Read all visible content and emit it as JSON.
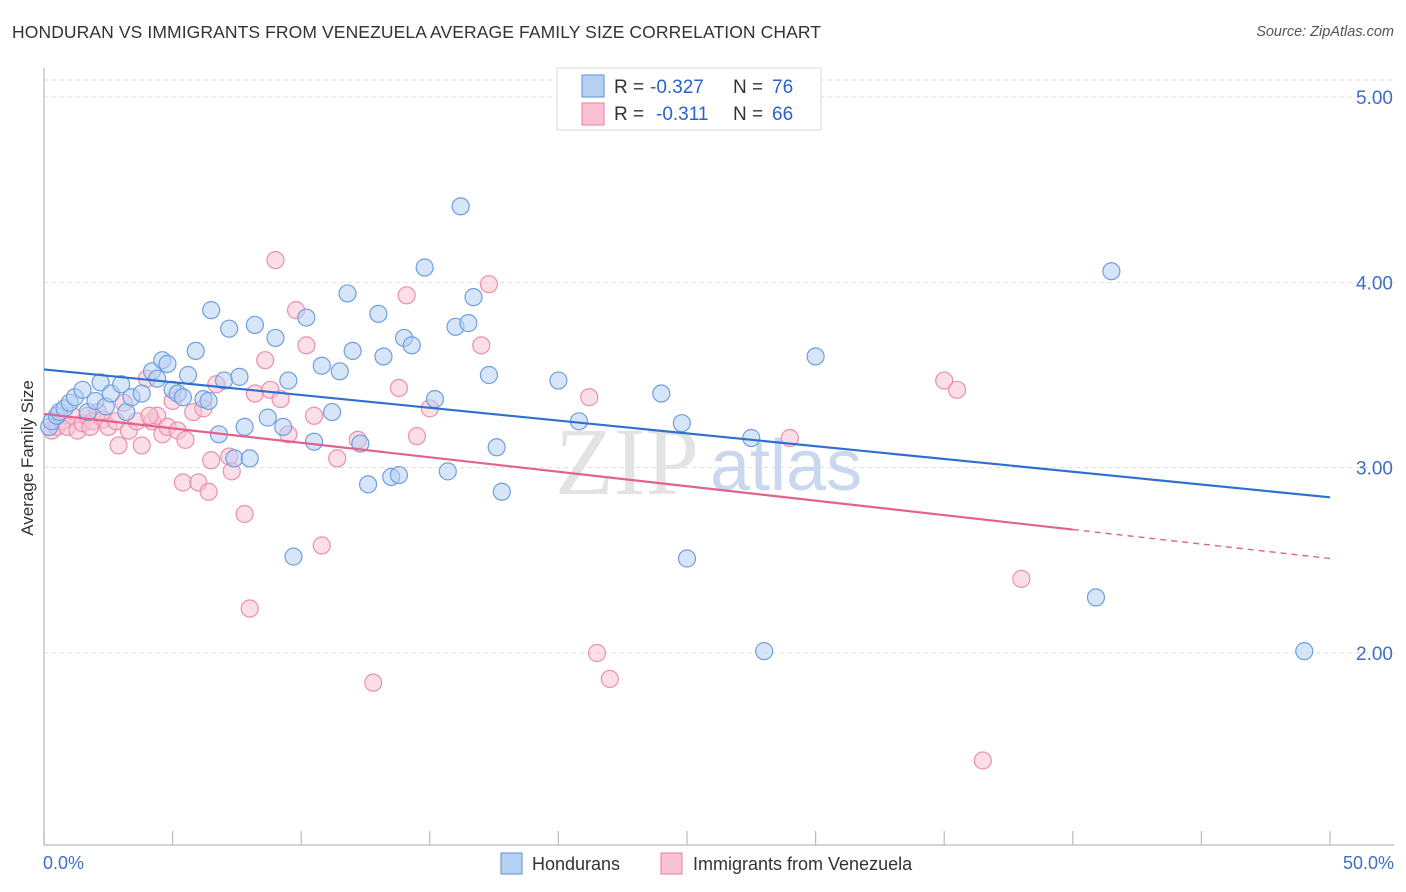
{
  "header": {
    "title": "HONDURAN VS IMMIGRANTS FROM VENEZUELA AVERAGE FAMILY SIZE CORRELATION CHART",
    "source": "Source: ZipAtlas.com"
  },
  "legend_top": {
    "rows": [
      {
        "r_label": "R =",
        "r_value": "-0.327",
        "n_label": "N =",
        "n_value": "76"
      },
      {
        "r_label": "R =",
        "r_value": "-0.311",
        "n_label": "N =",
        "n_value": "66"
      }
    ]
  },
  "legend_bottom": {
    "items": [
      {
        "label": "Hondurans"
      },
      {
        "label": "Immigrants from Venezuela"
      }
    ]
  },
  "watermark": {
    "part1": "ZIP",
    "part2": "atlas"
  },
  "colors": {
    "blue_fill": "#b7d0f2",
    "blue_stroke": "#6f9fe0",
    "blue_line": "#2f6fd0",
    "pink_fill": "#f8c2d2",
    "pink_stroke": "#ec8fae",
    "pink_line": "#e2618f",
    "tick_text": "#3f6fc4",
    "grid": "#dddddd"
  },
  "chart_data": {
    "type": "scatter",
    "title": "HONDURAN VS IMMIGRANTS FROM VENEZUELA AVERAGE FAMILY SIZE CORRELATION CHART",
    "xlabel": "",
    "ylabel": "Average Family Size",
    "xlim": [
      0,
      50
    ],
    "ylim": [
      1.0,
      5.15
    ],
    "x_tick_labels": [
      "0.0%",
      "50.0%"
    ],
    "y_ticks": [
      2.0,
      3.0,
      4.0,
      5.0
    ],
    "y_tick_labels": [
      "2.00",
      "3.00",
      "4.00",
      "5.00"
    ],
    "grid": true,
    "legend_position": "top-center",
    "series": [
      {
        "name": "Hondurans",
        "color": "#6f9fe0",
        "trend": {
          "x0": 0,
          "y0": 3.53,
          "x1": 50,
          "y1": 2.84,
          "solid_to": 50
        },
        "points": [
          [
            0.2,
            3.22
          ],
          [
            0.3,
            3.25
          ],
          [
            0.5,
            3.28
          ],
          [
            0.6,
            3.3
          ],
          [
            0.8,
            3.32
          ],
          [
            1.0,
            3.35
          ],
          [
            1.2,
            3.38
          ],
          [
            1.5,
            3.42
          ],
          [
            1.7,
            3.3
          ],
          [
            2.0,
            3.36
          ],
          [
            2.2,
            3.46
          ],
          [
            2.4,
            3.33
          ],
          [
            2.6,
            3.4
          ],
          [
            3.0,
            3.45
          ],
          [
            3.2,
            3.3
          ],
          [
            3.4,
            3.38
          ],
          [
            3.8,
            3.4
          ],
          [
            4.2,
            3.52
          ],
          [
            4.4,
            3.48
          ],
          [
            4.6,
            3.58
          ],
          [
            4.8,
            3.56
          ],
          [
            5.0,
            3.42
          ],
          [
            5.2,
            3.4
          ],
          [
            5.4,
            3.38
          ],
          [
            5.6,
            3.5
          ],
          [
            5.9,
            3.63
          ],
          [
            6.2,
            3.37
          ],
          [
            6.4,
            3.36
          ],
          [
            6.5,
            3.85
          ],
          [
            6.8,
            3.18
          ],
          [
            7.0,
            3.47
          ],
          [
            7.2,
            3.75
          ],
          [
            7.4,
            3.05
          ],
          [
            7.6,
            3.49
          ],
          [
            7.8,
            3.22
          ],
          [
            8.0,
            3.05
          ],
          [
            8.2,
            3.77
          ],
          [
            8.7,
            3.27
          ],
          [
            9.0,
            3.7
          ],
          [
            9.3,
            3.22
          ],
          [
            9.5,
            3.47
          ],
          [
            9.7,
            2.52
          ],
          [
            10.2,
            3.81
          ],
          [
            10.5,
            3.14
          ],
          [
            10.8,
            3.55
          ],
          [
            11.2,
            3.3
          ],
          [
            11.5,
            3.52
          ],
          [
            11.8,
            3.94
          ],
          [
            12.0,
            3.63
          ],
          [
            12.3,
            3.13
          ],
          [
            12.6,
            2.91
          ],
          [
            13.0,
            3.83
          ],
          [
            13.2,
            3.6
          ],
          [
            13.5,
            2.95
          ],
          [
            13.8,
            2.96
          ],
          [
            14.0,
            3.7
          ],
          [
            14.3,
            3.66
          ],
          [
            14.8,
            4.08
          ],
          [
            15.2,
            3.37
          ],
          [
            15.7,
            2.98
          ],
          [
            16.0,
            3.76
          ],
          [
            16.2,
            4.41
          ],
          [
            16.5,
            3.78
          ],
          [
            16.7,
            3.92
          ],
          [
            17.3,
            3.5
          ],
          [
            17.6,
            3.11
          ],
          [
            17.8,
            2.87
          ],
          [
            20.0,
            3.47
          ],
          [
            20.8,
            3.25
          ],
          [
            24.0,
            3.4
          ],
          [
            24.8,
            3.24
          ],
          [
            25.0,
            2.51
          ],
          [
            27.5,
            3.16
          ],
          [
            28.0,
            2.01
          ],
          [
            30.0,
            3.6
          ],
          [
            41.5,
            4.06
          ],
          [
            40.9,
            2.3
          ],
          [
            49.0,
            2.01
          ]
        ]
      },
      {
        "name": "Immigrants from Venezuela",
        "color": "#ec8fae",
        "trend": {
          "x0": 0,
          "y0": 3.29,
          "x1": 50,
          "y1": 2.51,
          "solid_to": 40
        },
        "points": [
          [
            0.3,
            3.2
          ],
          [
            0.5,
            3.22
          ],
          [
            0.7,
            3.25
          ],
          [
            0.9,
            3.22
          ],
          [
            1.1,
            3.28
          ],
          [
            1.3,
            3.2
          ],
          [
            1.5,
            3.24
          ],
          [
            1.7,
            3.28
          ],
          [
            1.9,
            3.25
          ],
          [
            2.1,
            3.3
          ],
          [
            2.3,
            3.26
          ],
          [
            2.5,
            3.22
          ],
          [
            2.8,
            3.25
          ],
          [
            2.9,
            3.12
          ],
          [
            3.1,
            3.35
          ],
          [
            3.3,
            3.2
          ],
          [
            3.6,
            3.25
          ],
          [
            3.8,
            3.12
          ],
          [
            4.0,
            3.48
          ],
          [
            4.2,
            3.25
          ],
          [
            4.4,
            3.28
          ],
          [
            4.6,
            3.18
          ],
          [
            4.8,
            3.22
          ],
          [
            5.0,
            3.36
          ],
          [
            5.2,
            3.2
          ],
          [
            5.4,
            2.92
          ],
          [
            5.5,
            3.15
          ],
          [
            5.8,
            3.3
          ],
          [
            6.0,
            2.92
          ],
          [
            6.2,
            3.32
          ],
          [
            6.4,
            2.87
          ],
          [
            6.5,
            3.04
          ],
          [
            6.7,
            3.45
          ],
          [
            7.2,
            3.06
          ],
          [
            7.3,
            2.98
          ],
          [
            7.8,
            2.75
          ],
          [
            8.0,
            2.24
          ],
          [
            8.2,
            3.4
          ],
          [
            8.6,
            3.58
          ],
          [
            8.8,
            3.42
          ],
          [
            9.0,
            4.12
          ],
          [
            9.2,
            3.37
          ],
          [
            9.5,
            3.18
          ],
          [
            9.8,
            3.85
          ],
          [
            10.2,
            3.66
          ],
          [
            10.5,
            3.28
          ],
          [
            10.8,
            2.58
          ],
          [
            11.4,
            3.05
          ],
          [
            12.2,
            3.15
          ],
          [
            12.8,
            1.84
          ],
          [
            13.8,
            3.43
          ],
          [
            14.1,
            3.93
          ],
          [
            14.5,
            3.17
          ],
          [
            15.0,
            3.32
          ],
          [
            17.0,
            3.66
          ],
          [
            17.3,
            3.99
          ],
          [
            21.2,
            3.38
          ],
          [
            21.5,
            2.0
          ],
          [
            22.0,
            1.86
          ],
          [
            29.0,
            3.16
          ],
          [
            35.0,
            3.47
          ],
          [
            35.5,
            3.42
          ],
          [
            36.5,
            1.42
          ],
          [
            38.0,
            2.4
          ],
          [
            1.8,
            3.22
          ],
          [
            4.1,
            3.28
          ]
        ]
      }
    ]
  }
}
